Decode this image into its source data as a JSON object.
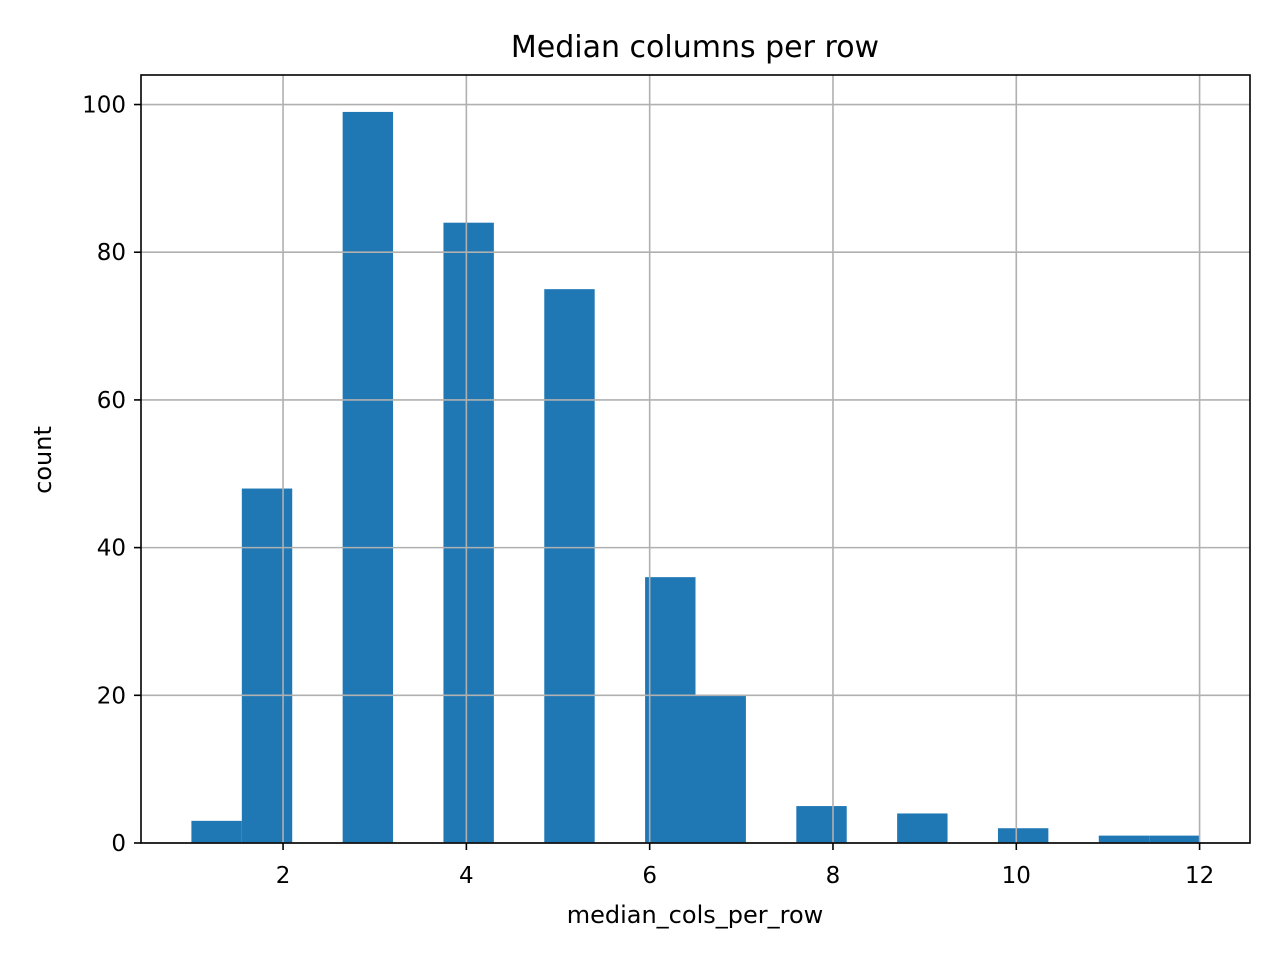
{
  "chart_data": {
    "type": "bar",
    "title": "Median columns per row",
    "xlabel": "median_cols_per_row",
    "ylabel": "count",
    "xlim": [
      0.45,
      12.55
    ],
    "ylim": [
      0,
      104
    ],
    "xticks": [
      2,
      4,
      6,
      8,
      10,
      12
    ],
    "yticks": [
      0,
      20,
      40,
      60,
      80,
      100
    ],
    "grid": true,
    "color": "#1f77b4",
    "bin_edges": [
      1.0,
      1.55,
      2.1,
      2.65,
      3.2,
      3.75,
      4.3,
      4.85,
      5.4,
      5.95,
      6.5,
      7.05,
      7.6,
      8.15,
      8.7,
      9.25,
      9.8,
      10.35,
      10.9,
      11.45,
      12.0
    ],
    "values": [
      3,
      48,
      0,
      99,
      0,
      84,
      0,
      75,
      0,
      36,
      20,
      0,
      5,
      0,
      4,
      0,
      2,
      0,
      1,
      1
    ]
  }
}
